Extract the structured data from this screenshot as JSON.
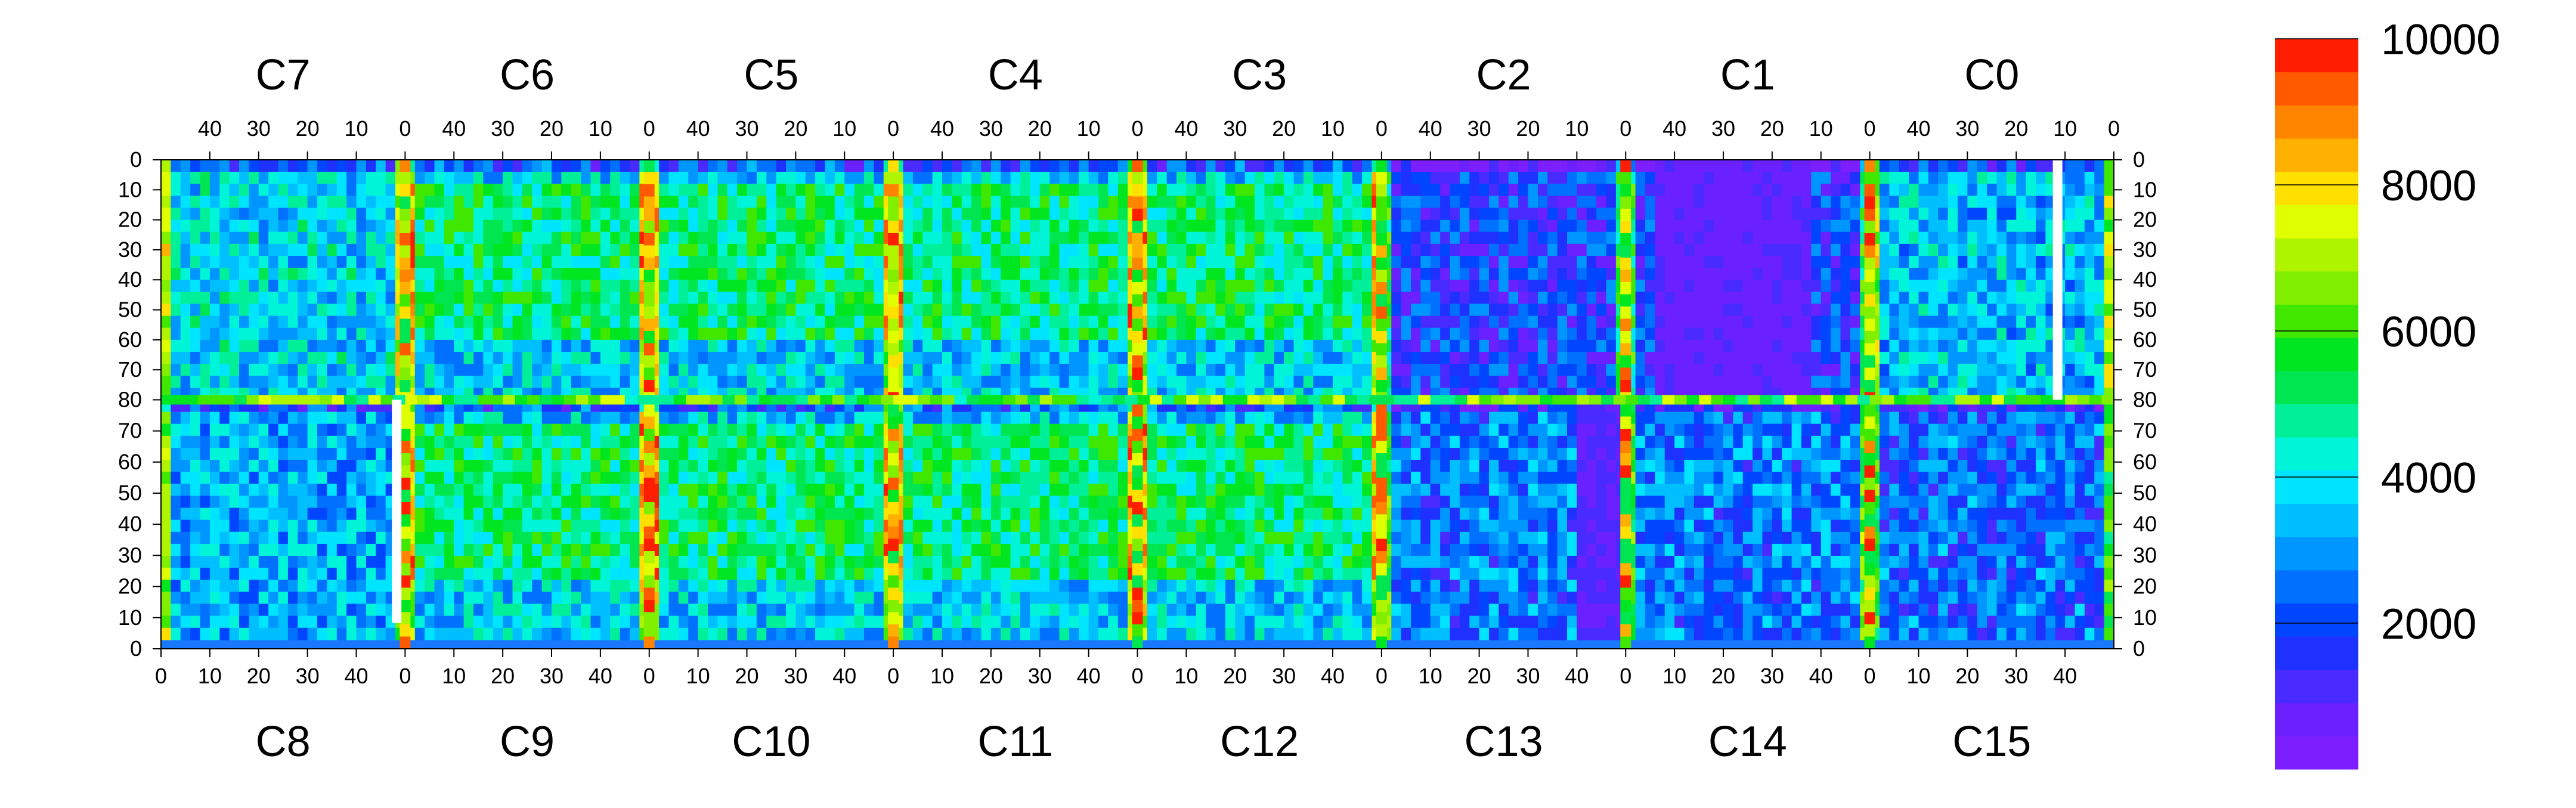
{
  "chart_data": {
    "type": "heatmap",
    "title": "",
    "chip_labels_top": [
      "C7",
      "C6",
      "C5",
      "C4",
      "C3",
      "C2",
      "C1",
      "C0"
    ],
    "chip_labels_bottom": [
      "C8",
      "C9",
      "C10",
      "C11",
      "C12",
      "C13",
      "C14",
      "C15"
    ],
    "x_top_ticks": [
      "40",
      "30",
      "20",
      "10",
      "0"
    ],
    "x_bottom_ticks": [
      "0",
      "10",
      "20",
      "30",
      "40"
    ],
    "y_ticks_top_half": [
      "0",
      "10",
      "20",
      "30",
      "40",
      "50",
      "60",
      "70",
      "80"
    ],
    "y_ticks_bottom_half": [
      "70",
      "60",
      "50",
      "40",
      "30",
      "20",
      "10",
      "0"
    ],
    "x_per_chip": [
      0,
      50
    ],
    "y_per_half": [
      0,
      80
    ],
    "zlim": [
      0,
      10000
    ],
    "colorbar": {
      "ticks": [
        "2000",
        "4000",
        "6000",
        "8000",
        "10000"
      ],
      "colors": [
        "#7b1fff",
        "#6a20ff",
        "#4a2bff",
        "#1f31ff",
        "#0046ff",
        "#0070ff",
        "#0096ff",
        "#00bfff",
        "#00e5ff",
        "#00f5d8",
        "#00f09a",
        "#00e650",
        "#00e620",
        "#40e800",
        "#80f000",
        "#b0f500",
        "#e0ff00",
        "#ffe000",
        "#ffb000",
        "#ff8400",
        "#ff5a00",
        "#ff1e00"
      ]
    },
    "grid": false,
    "legend": "colorbar-right"
  }
}
